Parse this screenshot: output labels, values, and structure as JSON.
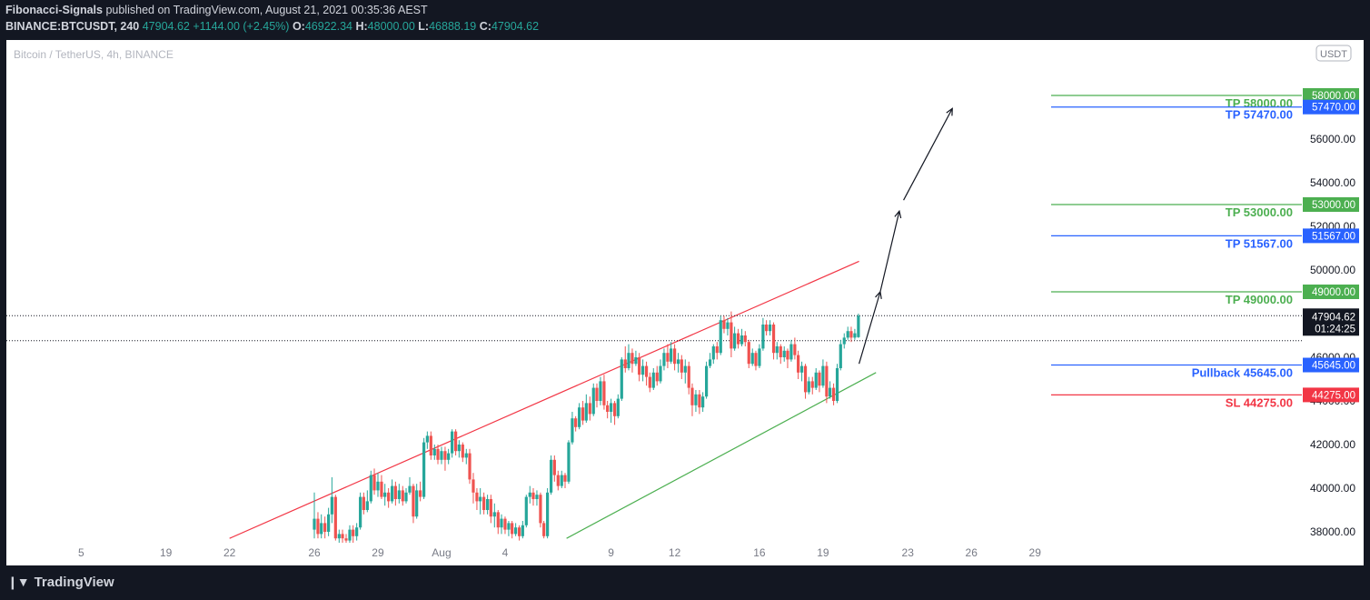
{
  "header": {
    "author": "Fibonacci-Signals",
    "published": "published on TradingView.com, August 21, 2021 00:35:36 AEST",
    "symbol": "BINANCE:BTCUSDT, 240",
    "last": "47904.62",
    "change": "+1144.00 (+2.45%)",
    "o_label": "O:",
    "o_val": "46922.34",
    "h_label": "H:",
    "h_val": "48000.00",
    "l_label": "L:",
    "l_val": "46888.19",
    "c_label": "C:",
    "c_val": "47904.62"
  },
  "footer": {
    "brand": "TradingView",
    "logo_icon": "tradingview-logo-icon"
  },
  "chart_data": {
    "type": "candlestick",
    "title": "Bitcoin / TetherUS, 4h, BINANCE",
    "currency_badge": "USDT",
    "y_axis_labels": [
      "58000.00",
      "56000.00",
      "54000.00",
      "52000.00",
      "50000.00",
      "48000.00",
      "46000.00",
      "44000.00",
      "42000.00",
      "40000.00",
      "38000.00"
    ],
    "x_tick_labels": [
      "5",
      "19",
      "22",
      "26",
      "29",
      "Aug",
      "4",
      "9",
      "12",
      "16",
      "19",
      "23",
      "26",
      "29"
    ],
    "x_tick_days": [
      15,
      19,
      22,
      26,
      29,
      32,
      35,
      40,
      43,
      47,
      50,
      54,
      57,
      60
    ],
    "levels": [
      {
        "name": "tp1",
        "label": "TP 58000.00",
        "price": 58000,
        "tag": "58000.00",
        "color": "#4caf50"
      },
      {
        "name": "tp2",
        "label": "TP 57470.00",
        "price": 57470,
        "tag": "57470.00",
        "color": "#2962ff"
      },
      {
        "name": "tp3",
        "label": "TP 53000.00",
        "price": 53000,
        "tag": "53000.00",
        "color": "#4caf50"
      },
      {
        "name": "tp4",
        "label": "TP 51567.00",
        "price": 51567,
        "tag": "51567.00",
        "color": "#2962ff"
      },
      {
        "name": "tp5",
        "label": "TP 49000.00",
        "price": 49000,
        "tag": "49000.00",
        "color": "#4caf50"
      },
      {
        "name": "pullback",
        "label": "Pullback 45645.00",
        "price": 45645,
        "tag": "45645.00",
        "color": "#2962ff"
      },
      {
        "name": "sl",
        "label": "SL 44275.00",
        "price": 44275,
        "tag": "44275.00",
        "color": "#f23645"
      }
    ],
    "last_price": {
      "price": 47904.62,
      "label": "47904.62",
      "countdown": "01:24:25"
    },
    "reference_price": 46760,
    "channel_upper": {
      "start_day": 22.0,
      "start_price": 37700,
      "end_day": 51.7,
      "end_price": 50400,
      "color": "#f23645"
    },
    "channel_lower": {
      "start_day": 37.9,
      "start_price": 37700,
      "end_day": 52.5,
      "end_price": 45300,
      "color": "#4caf50"
    },
    "projection_arrows": [
      {
        "from_day": 51.7,
        "from_price": 45700,
        "to_day": 52.7,
        "to_price": 49000
      },
      {
        "from_day": 52.7,
        "from_price": 49000,
        "to_day": 53.6,
        "to_price": 52700
      },
      {
        "from_day": 53.8,
        "from_price": 53200,
        "to_day": 56.1,
        "to_price": 57400
      }
    ],
    "candles": [
      [
        26.0,
        38100,
        38600,
        37700,
        39800
      ],
      [
        26.17,
        38600,
        37900,
        37700,
        38900
      ],
      [
        26.33,
        37900,
        38400,
        37700,
        38800
      ],
      [
        26.5,
        38400,
        38000,
        37700,
        38700
      ],
      [
        26.67,
        38000,
        38800,
        37800,
        39100
      ],
      [
        26.83,
        38800,
        39600,
        38400,
        40500
      ],
      [
        27.0,
        39600,
        37700,
        37600,
        39700
      ],
      [
        27.17,
        37700,
        37900,
        37500,
        38100
      ],
      [
        27.33,
        37900,
        37700,
        37500,
        38100
      ],
      [
        27.5,
        37700,
        37600,
        37500,
        37900
      ],
      [
        27.67,
        37600,
        38100,
        37500,
        38300
      ],
      [
        27.83,
        38100,
        37800,
        37500,
        38300
      ],
      [
        28.0,
        37800,
        38200,
        37600,
        38400
      ],
      [
        28.17,
        38200,
        39600,
        38100,
        39800
      ],
      [
        28.33,
        39600,
        39000,
        38800,
        39800
      ],
      [
        28.5,
        39000,
        39400,
        38900,
        39900
      ],
      [
        28.67,
        39400,
        40600,
        39300,
        40800
      ],
      [
        28.83,
        40600,
        39900,
        39700,
        40900
      ],
      [
        29.0,
        39900,
        40300,
        39600,
        40700
      ],
      [
        29.17,
        40300,
        39600,
        39500,
        40600
      ],
      [
        29.33,
        39600,
        39800,
        39200,
        40200
      ],
      [
        29.5,
        39800,
        39400,
        39100,
        40000
      ],
      [
        29.67,
        39400,
        40100,
        39300,
        40400
      ],
      [
        29.83,
        40100,
        39500,
        39200,
        40300
      ],
      [
        30.0,
        39500,
        39900,
        39300,
        40200
      ],
      [
        30.17,
        39900,
        39400,
        39200,
        40100
      ],
      [
        30.33,
        39400,
        39800,
        39300,
        40000
      ],
      [
        30.5,
        39800,
        40100,
        39700,
        40500
      ],
      [
        30.67,
        40100,
        38700,
        38400,
        40200
      ],
      [
        30.83,
        38700,
        39900,
        38600,
        40200
      ],
      [
        31.0,
        39900,
        39600,
        39400,
        40300
      ],
      [
        31.17,
        39600,
        42100,
        39500,
        42300
      ],
      [
        31.33,
        42100,
        42400,
        41800,
        42600
      ],
      [
        31.5,
        42400,
        41500,
        41300,
        42600
      ],
      [
        31.67,
        41500,
        41800,
        41300,
        42000
      ],
      [
        31.83,
        41800,
        41300,
        41100,
        42000
      ],
      [
        32.0,
        41300,
        41700,
        41100,
        41900
      ],
      [
        32.17,
        41700,
        41300,
        40800,
        41900
      ],
      [
        32.33,
        41300,
        41600,
        41100,
        41800
      ],
      [
        32.5,
        41600,
        42600,
        41400,
        42700
      ],
      [
        32.67,
        42600,
        41700,
        41500,
        42700
      ],
      [
        32.83,
        41700,
        42000,
        41400,
        42200
      ],
      [
        33.0,
        42000,
        41400,
        41200,
        42100
      ],
      [
        33.17,
        41400,
        41600,
        41100,
        41800
      ],
      [
        33.33,
        41600,
        40400,
        40200,
        41800
      ],
      [
        33.5,
        40400,
        39800,
        39300,
        40700
      ],
      [
        33.67,
        39800,
        39400,
        39000,
        40000
      ],
      [
        33.83,
        39400,
        39600,
        38800,
        40000
      ],
      [
        34.0,
        39600,
        39000,
        38800,
        39800
      ],
      [
        34.17,
        39000,
        39500,
        38800,
        39700
      ],
      [
        34.33,
        39500,
        38700,
        38400,
        39700
      ],
      [
        34.5,
        38700,
        38900,
        38200,
        39300
      ],
      [
        34.67,
        38900,
        38200,
        37900,
        39000
      ],
      [
        34.83,
        38200,
        38600,
        37900,
        38800
      ],
      [
        35.0,
        38600,
        38100,
        37900,
        38700
      ],
      [
        35.17,
        38100,
        38400,
        37800,
        38500
      ],
      [
        35.33,
        38400,
        37900,
        37700,
        38500
      ],
      [
        35.5,
        37900,
        38200,
        37800,
        38400
      ],
      [
        35.67,
        38200,
        37800,
        37600,
        38300
      ],
      [
        35.83,
        37800,
        38300,
        37700,
        38500
      ],
      [
        36.0,
        38300,
        39600,
        38200,
        39700
      ],
      [
        36.17,
        39600,
        39800,
        39300,
        40100
      ],
      [
        36.33,
        39800,
        39500,
        39200,
        40000
      ],
      [
        36.5,
        39500,
        39700,
        39200,
        39900
      ],
      [
        36.67,
        39700,
        38400,
        38200,
        39800
      ],
      [
        36.83,
        38400,
        37800,
        37700,
        38500
      ],
      [
        37.0,
        37800,
        39800,
        37700,
        40000
      ],
      [
        37.17,
        39800,
        41300,
        39700,
        41500
      ],
      [
        37.33,
        41300,
        40600,
        40300,
        41500
      ],
      [
        37.5,
        40600,
        40100,
        39900,
        40800
      ],
      [
        37.67,
        40100,
        40600,
        40000,
        40800
      ],
      [
        37.83,
        40600,
        40300,
        40000,
        40700
      ],
      [
        38.0,
        40300,
        42100,
        40200,
        42200
      ],
      [
        38.17,
        42100,
        43200,
        42000,
        43500
      ],
      [
        38.33,
        43200,
        42800,
        42600,
        43300
      ],
      [
        38.5,
        42800,
        43700,
        42700,
        43900
      ],
      [
        38.67,
        43700,
        43100,
        42900,
        44000
      ],
      [
        38.83,
        43100,
        43900,
        43000,
        44300
      ],
      [
        39.0,
        43900,
        43400,
        43100,
        44200
      ],
      [
        39.17,
        43400,
        44600,
        43300,
        44800
      ],
      [
        39.33,
        44600,
        44000,
        43700,
        44800
      ],
      [
        39.5,
        44000,
        44900,
        43800,
        45100
      ],
      [
        39.67,
        44900,
        43800,
        43600,
        45200
      ],
      [
        39.83,
        43800,
        43500,
        43200,
        44000
      ],
      [
        40.0,
        43500,
        43900,
        43000,
        44100
      ],
      [
        40.17,
        43900,
        43300,
        42900,
        44000
      ],
      [
        40.33,
        43300,
        44100,
        43200,
        44300
      ],
      [
        40.5,
        44100,
        45900,
        44000,
        46000
      ],
      [
        40.67,
        45900,
        45500,
        45300,
        46500
      ],
      [
        40.83,
        45500,
        46200,
        45400,
        46600
      ],
      [
        41.0,
        46200,
        45700,
        45300,
        46400
      ],
      [
        41.17,
        45700,
        46000,
        45600,
        46300
      ],
      [
        41.33,
        46000,
        45200,
        44900,
        46200
      ],
      [
        41.5,
        45200,
        45600,
        44900,
        45900
      ],
      [
        41.67,
        45600,
        45100,
        44700,
        45800
      ],
      [
        41.83,
        45100,
        44600,
        44400,
        45300
      ],
      [
        42.0,
        44600,
        45300,
        44500,
        45500
      ],
      [
        42.17,
        45300,
        44900,
        44700,
        45600
      ],
      [
        42.33,
        44900,
        45600,
        44800,
        45900
      ],
      [
        42.5,
        45600,
        46200,
        45400,
        46400
      ],
      [
        42.67,
        46200,
        45800,
        45500,
        46600
      ],
      [
        42.83,
        45800,
        46400,
        45700,
        46700
      ],
      [
        43.0,
        46400,
        45700,
        45400,
        46600
      ],
      [
        43.17,
        45700,
        45900,
        45300,
        46200
      ],
      [
        43.33,
        45900,
        45300,
        45000,
        46100
      ],
      [
        43.5,
        45300,
        45600,
        44800,
        45900
      ],
      [
        43.67,
        45600,
        44600,
        44300,
        45800
      ],
      [
        43.83,
        44600,
        43800,
        43300,
        44800
      ],
      [
        44.0,
        43800,
        44300,
        43500,
        44500
      ],
      [
        44.17,
        44300,
        43700,
        43400,
        44500
      ],
      [
        44.33,
        43700,
        44200,
        43500,
        44400
      ],
      [
        44.5,
        44200,
        45600,
        44100,
        45800
      ],
      [
        44.67,
        45600,
        45900,
        45500,
        46200
      ],
      [
        44.83,
        45900,
        46500,
        45700,
        46600
      ],
      [
        45.0,
        46500,
        46200,
        45900,
        46700
      ],
      [
        45.17,
        46200,
        47700,
        46100,
        47900
      ],
      [
        45.33,
        47700,
        47300,
        47100,
        47900
      ],
      [
        45.5,
        47300,
        47600,
        47000,
        47800
      ],
      [
        45.67,
        47600,
        46400,
        46000,
        48100
      ],
      [
        45.83,
        46400,
        47100,
        46300,
        47400
      ],
      [
        46.0,
        47100,
        46600,
        46400,
        47300
      ],
      [
        46.17,
        46600,
        47000,
        46500,
        47300
      ],
      [
        46.33,
        47000,
        46700,
        46500,
        47200
      ],
      [
        46.5,
        46700,
        45700,
        45500,
        46800
      ],
      [
        46.67,
        45700,
        46200,
        45600,
        46400
      ],
      [
        46.83,
        46200,
        45600,
        45400,
        46300
      ],
      [
        47.0,
        45600,
        46400,
        45500,
        46600
      ],
      [
        47.17,
        46400,
        47500,
        46300,
        47800
      ],
      [
        47.33,
        47500,
        47200,
        47000,
        47700
      ],
      [
        47.5,
        47200,
        47500,
        47000,
        47700
      ],
      [
        47.67,
        47500,
        46200,
        45900,
        47600
      ],
      [
        47.83,
        46200,
        46500,
        45900,
        46700
      ],
      [
        48.0,
        46500,
        46000,
        45700,
        46600
      ],
      [
        48.17,
        46000,
        46300,
        45800,
        46500
      ],
      [
        48.33,
        46300,
        45900,
        45500,
        46400
      ],
      [
        48.5,
        45900,
        46600,
        45800,
        46800
      ],
      [
        48.67,
        46600,
        46100,
        45900,
        46900
      ],
      [
        48.83,
        46100,
        45300,
        45000,
        46300
      ],
      [
        49.0,
        45300,
        45600,
        44900,
        45800
      ],
      [
        49.17,
        45600,
        44400,
        44100,
        45700
      ],
      [
        49.33,
        44400,
        44900,
        44300,
        45100
      ],
      [
        49.5,
        44900,
        44600,
        44300,
        45100
      ],
      [
        49.67,
        44600,
        45300,
        44500,
        45500
      ],
      [
        49.83,
        45300,
        44700,
        44400,
        45400
      ],
      [
        50.0,
        44700,
        45600,
        44600,
        45900
      ],
      [
        50.17,
        45600,
        44200,
        43900,
        45800
      ],
      [
        50.33,
        44200,
        44600,
        44100,
        44900
      ],
      [
        50.5,
        44600,
        44000,
        43800,
        44800
      ],
      [
        50.67,
        44000,
        45500,
        43900,
        45700
      ],
      [
        50.83,
        45500,
        46600,
        45400,
        46800
      ],
      [
        51.0,
        46600,
        46900,
        46400,
        47100
      ],
      [
        51.17,
        46900,
        47200,
        46800,
        47400
      ],
      [
        51.33,
        47200,
        46900,
        46700,
        47400
      ],
      [
        51.5,
        46900,
        47100,
        46800,
        47300
      ],
      [
        51.67,
        46922,
        47904,
        46888,
        48000
      ]
    ]
  }
}
